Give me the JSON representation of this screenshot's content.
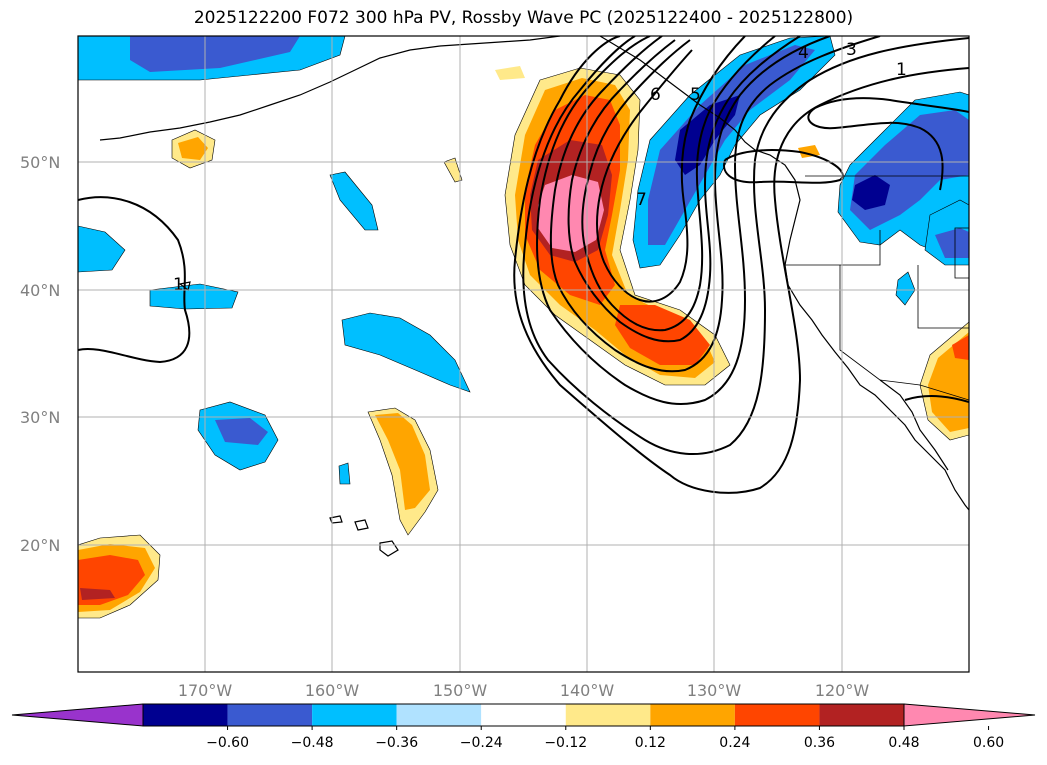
{
  "title": "2025122200 F072 300 hPa PV, Rossby Wave PC (2025122400 - 2025122800)",
  "latitude_labels": [
    "50°N",
    "40°N",
    "30°N",
    "20°N"
  ],
  "longitude_labels": [
    "170°W",
    "160°W",
    "150°W",
    "140°W",
    "130°W",
    "120°W"
  ],
  "colorbar": {
    "ticks": [
      "−0.60",
      "−0.48",
      "−0.36",
      "−0.24",
      "−0.12",
      "0.12",
      "0.24",
      "0.36",
      "0.48",
      "0.60"
    ],
    "colors": [
      "#9933cc",
      "#000090",
      "#3a5ad0",
      "#00bfff",
      "#b0e2ff",
      "#ffffff",
      "#ffe98a",
      "#ffa500",
      "#ff4500",
      "#b22222",
      "#ff88b0"
    ]
  },
  "contour_labels": [
    "1",
    "3",
    "4",
    "5",
    "6",
    "7",
    "1",
    "1"
  ],
  "colors": {
    "coastline": "#000000",
    "grid": "#b0b0b0",
    "axis_label": "#808080"
  }
}
